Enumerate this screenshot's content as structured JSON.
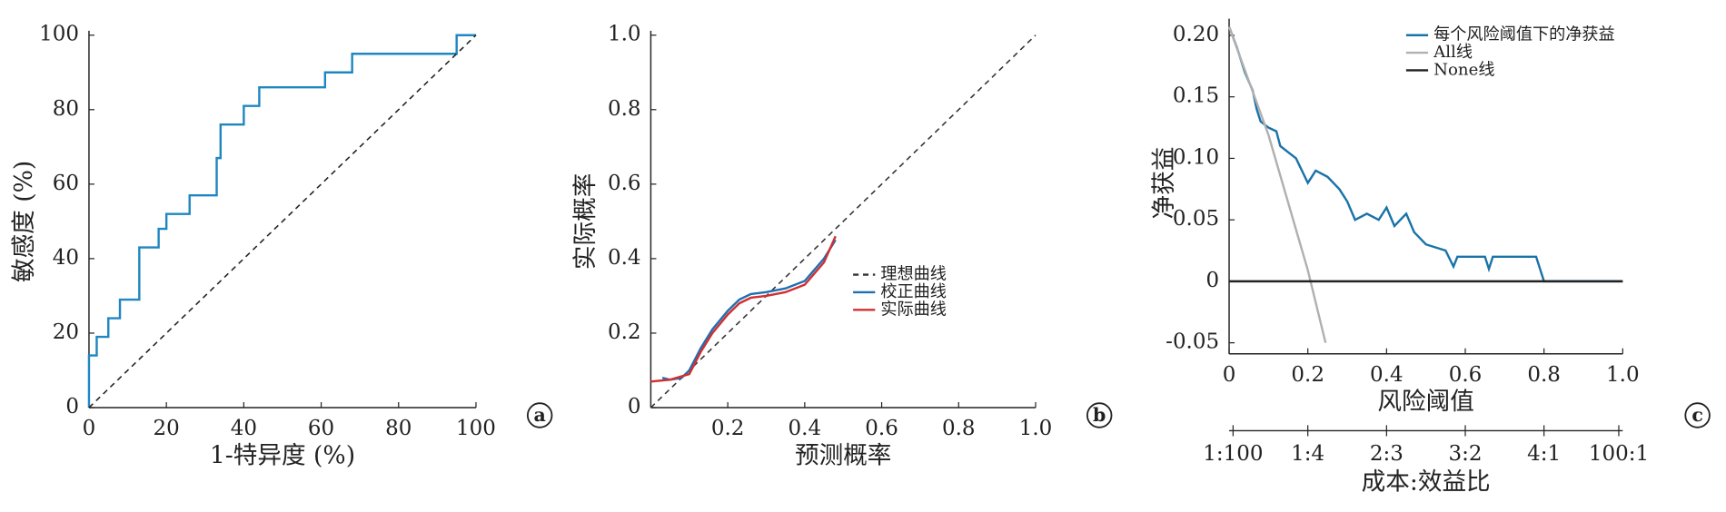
{
  "chart_data": [
    {
      "type": "line",
      "panel": "a",
      "xlabel": "1-特异度 (%)",
      "ylabel": "敏感度 (%)",
      "xlim": [
        0,
        100
      ],
      "ylim": [
        0,
        100
      ],
      "xticks": [
        0,
        20,
        40,
        60,
        80,
        100
      ],
      "yticks": [
        0,
        20,
        40,
        60,
        80,
        100
      ],
      "series": [
        {
          "color": "#1f87c0",
          "dash": false,
          "x": [
            0,
            0,
            2,
            2,
            5,
            5,
            8,
            8,
            13,
            13,
            18,
            18,
            20,
            20,
            26,
            26,
            33,
            33,
            34,
            34,
            40,
            40,
            44,
            44,
            61,
            61,
            68,
            68,
            95,
            95,
            100
          ],
          "values": [
            0,
            14,
            14,
            19,
            19,
            24,
            24,
            29,
            29,
            43,
            43,
            48,
            48,
            52,
            52,
            57,
            57,
            67,
            67,
            76,
            76,
            81,
            81,
            86,
            86,
            90,
            90,
            95,
            95,
            100,
            100
          ]
        },
        {
          "color": "#222222",
          "dash": true,
          "x": [
            0,
            100
          ],
          "values": [
            0,
            100
          ]
        }
      ]
    },
    {
      "type": "line",
      "panel": "b",
      "xlabel": "预测概率",
      "ylabel": "实际概率",
      "legend": "right",
      "xlim": [
        0,
        1
      ],
      "ylim": [
        0,
        1
      ],
      "xticks": [
        0.2,
        0.4,
        0.6,
        0.8,
        {
          "value": 1,
          "label": "1.0"
        }
      ],
      "yticks": [
        0,
        0.2,
        0.4,
        0.6,
        0.8,
        {
          "value": 1,
          "label": "1.0"
        }
      ],
      "series": [
        {
          "name": "理想曲线",
          "color": "#333333",
          "dash": true,
          "x": [
            0,
            1
          ],
          "values": [
            0,
            1
          ]
        },
        {
          "name": "校正曲线",
          "color": "#1f6fb4",
          "dash": false,
          "x": [
            0.03,
            0.05,
            0.08,
            0.1,
            0.13,
            0.16,
            0.2,
            0.23,
            0.26,
            0.3,
            0.35,
            0.4,
            0.45,
            0.48
          ],
          "values": [
            0.08,
            0.075,
            0.08,
            0.1,
            0.16,
            0.21,
            0.26,
            0.29,
            0.305,
            0.31,
            0.32,
            0.34,
            0.4,
            0.45
          ]
        },
        {
          "name": "实际曲线",
          "color": "#d03030",
          "dash": false,
          "x": [
            0,
            0.05,
            0.1,
            0.13,
            0.16,
            0.2,
            0.23,
            0.26,
            0.3,
            0.35,
            0.4,
            0.45,
            0.48
          ],
          "values": [
            0.07,
            0.075,
            0.09,
            0.15,
            0.2,
            0.25,
            0.28,
            0.295,
            0.3,
            0.31,
            0.33,
            0.39,
            0.46
          ]
        }
      ]
    },
    {
      "type": "line",
      "panel": "c",
      "xlabel": "风险阈值",
      "ylabel": "净获益",
      "legend": "top",
      "x2label": "成本:效益比",
      "xlim": [
        0,
        1
      ],
      "ylim": [
        -0.05,
        0.21
      ],
      "xticks": [
        0,
        0.2,
        0.4,
        0.6,
        0.8,
        {
          "value": 1,
          "label": "1.0"
        }
      ],
      "yticks": [
        -0.05,
        0,
        0.05,
        {
          "value": 0.1,
          "label": "0.10"
        },
        0.15,
        {
          "value": 0.2,
          "label": "0.20"
        }
      ],
      "x2ticks": [
        {
          "value": 0.01,
          "label": "1:100"
        },
        {
          "value": 0.2,
          "label": "1:4"
        },
        {
          "value": 0.4,
          "label": "2:3"
        },
        {
          "value": 0.6,
          "label": "3:2"
        },
        {
          "value": 0.8,
          "label": "4:1"
        },
        {
          "value": 0.99,
          "label": "100:1"
        }
      ],
      "series": [
        {
          "name": "每个风险阈值下的净获益",
          "color": "#1a73a8",
          "dash": false,
          "x": [
            0,
            0.02,
            0.04,
            0.06,
            0.07,
            0.08,
            0.1,
            0.12,
            0.13,
            0.15,
            0.17,
            0.2,
            0.22,
            0.25,
            0.28,
            0.3,
            0.32,
            0.35,
            0.38,
            0.4,
            0.42,
            0.45,
            0.47,
            0.5,
            0.55,
            0.57,
            0.58,
            0.65,
            0.66,
            0.67,
            0.78,
            0.8,
            1
          ],
          "values": [
            0.207,
            0.19,
            0.17,
            0.155,
            0.14,
            0.13,
            0.125,
            0.122,
            0.11,
            0.105,
            0.1,
            0.08,
            0.09,
            0.085,
            0.075,
            0.065,
            0.05,
            0.055,
            0.05,
            0.06,
            0.045,
            0.055,
            0.04,
            0.03,
            0.025,
            0.012,
            0.02,
            0.02,
            0.01,
            0.02,
            0.02,
            0,
            0
          ]
        },
        {
          "name": "All线",
          "color": "#b0b0b0",
          "dash": false,
          "x": [
            0,
            0.1,
            0.2,
            0.245
          ],
          "values": [
            0.207,
            0.119,
            0.009,
            -0.05
          ]
        },
        {
          "name": "None线",
          "color": "#222222",
          "dash": false,
          "x": [
            0,
            1
          ],
          "values": [
            0,
            0
          ]
        }
      ]
    }
  ]
}
